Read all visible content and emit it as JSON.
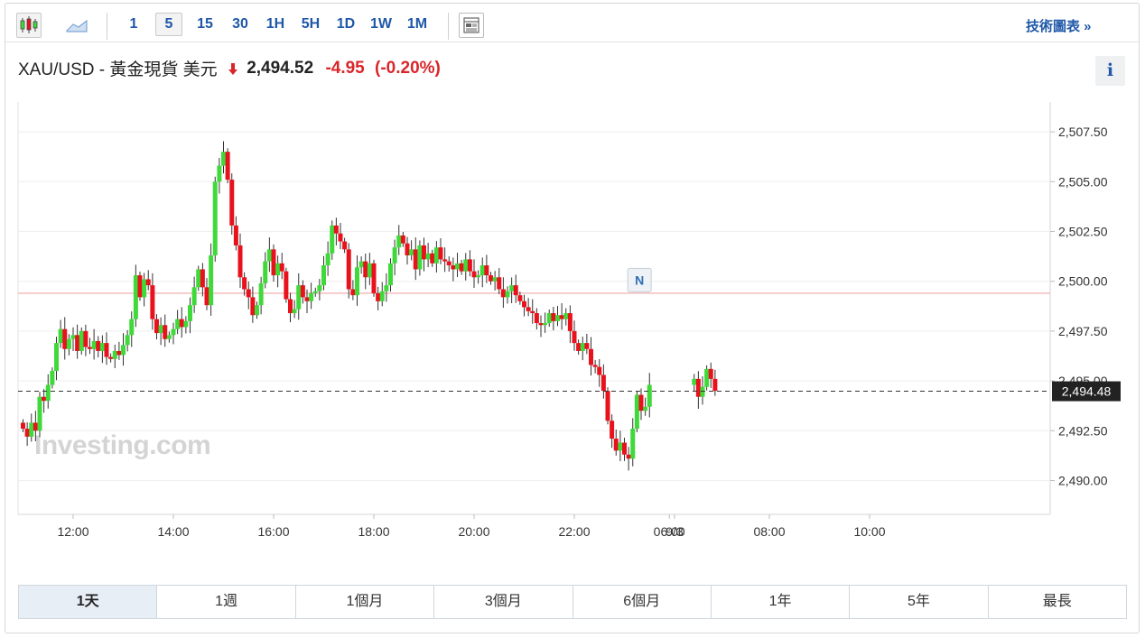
{
  "toolbar": {
    "chart_type_icons": [
      "candlestick-icon",
      "area-chart-icon"
    ],
    "intervals": [
      "1",
      "5",
      "15",
      "30",
      "1H",
      "5H",
      "1D",
      "1W",
      "1M"
    ],
    "selected_interval": "5",
    "layout_icon": "layout-icon",
    "tech_chart_link": "技術圖表 »"
  },
  "quote": {
    "name": "XAU/USD - 黃金現貨 美元",
    "price": "2,494.52",
    "change": "-4.95",
    "change_pct": "(-0.20%)",
    "direction_icon": "down-arrow-icon",
    "info_label": "i"
  },
  "colors": {
    "up": "#3fd93a",
    "down": "#e8111c",
    "reference_line": "#f2a6a6",
    "price_label_bg": "#222222",
    "link": "#1f58a8"
  },
  "chart_data": {
    "type": "candlestick",
    "x_ticks": [
      "12:00",
      "14:00",
      "16:00",
      "18:00",
      "20:00",
      "22:00",
      "9/3",
      "06:00",
      "08:00",
      "10:00"
    ],
    "y_ticks": [
      "2,507.50",
      "2,505.00",
      "2,502.50",
      "2,500.00",
      "2,497.50",
      "2,495.00",
      "2,492.50",
      "2,490.00"
    ],
    "ylim": [
      2488.3,
      2509.0
    ],
    "reference_line": 2499.4,
    "last_price_line": 2494.48,
    "last_price_label": "2,494.48",
    "news_markers": [
      {
        "label": "N",
        "x_hours": 12.3,
        "price": 2499.2
      },
      {
        "label": "N",
        "x_hours": 32.7,
        "price": 2497.3
      }
    ],
    "watermark": "Investing.com",
    "closes": [
      2492.6,
      2492.2,
      2492.9,
      2492.5,
      2494.2,
      2494.0,
      2494.8,
      2495.5,
      2496.9,
      2497.6,
      2496.6,
      2497.1,
      2497.3,
      2496.5,
      2497.5,
      2496.7,
      2496.6,
      2497.0,
      2496.5,
      2496.9,
      2496.2,
      2496.1,
      2496.5,
      2496.3,
      2496.8,
      2497.3,
      2498.1,
      2500.3,
      2499.2,
      2500.1,
      2499.8,
      2498.1,
      2497.4,
      2497.8,
      2497.1,
      2497.3,
      2497.6,
      2498.1,
      2497.7,
      2498.0,
      2498.8,
      2499.7,
      2500.6,
      2499.7,
      2498.8,
      2501.3,
      2505.0,
      2505.8,
      2506.5,
      2505.1,
      2502.8,
      2501.8,
      2500.2,
      2499.6,
      2499.2,
      2498.3,
      2498.8,
      2499.9,
      2501.0,
      2501.6,
      2500.3,
      2500.9,
      2500.5,
      2499.1,
      2498.4,
      2498.6,
      2499.8,
      2499.2,
      2499.0,
      2499.4,
      2499.5,
      2499.8,
      2500.8,
      2501.4,
      2502.8,
      2502.4,
      2502.0,
      2501.6,
      2499.6,
      2499.3,
      2500.7,
      2501.0,
      2500.2,
      2500.9,
      2499.4,
      2499.0,
      2499.5,
      2499.8,
      2500.9,
      2501.7,
      2502.3,
      2501.9,
      2501.3,
      2501.6,
      2500.6,
      2501.8,
      2501.1,
      2501.4,
      2500.9,
      2501.7,
      2501.1,
      2501.0,
      2500.8,
      2500.6,
      2500.9,
      2500.5,
      2501.1,
      2500.5,
      2500.2,
      2500.3,
      2500.8,
      2500.3,
      2500.0,
      2500.2,
      2499.6,
      2499.2,
      2499.5,
      2499.8,
      2499.3,
      2499.0,
      2498.7,
      2498.5,
      2498.4,
      2497.9,
      2497.8,
      2497.9,
      2498.4,
      2498.0,
      2498.3,
      2498.1,
      2498.4,
      2497.5,
      2496.9,
      2496.5,
      2496.9,
      2496.6,
      2495.8,
      2495.7,
      2495.3,
      2494.5,
      2493.0,
      2492.1,
      2491.5,
      2491.9,
      2491.3,
      2491.1,
      2492.6,
      2494.3,
      2493.5,
      2493.7,
      2494.8,
      2495.1,
      2494.2,
      2494.7,
      2495.6,
      2495.1,
      2494.5
    ]
  },
  "periods": {
    "items": [
      "1天",
      "1週",
      "1個月",
      "3個月",
      "6個月",
      "1年",
      "5年",
      "最長"
    ],
    "selected": "1天"
  }
}
